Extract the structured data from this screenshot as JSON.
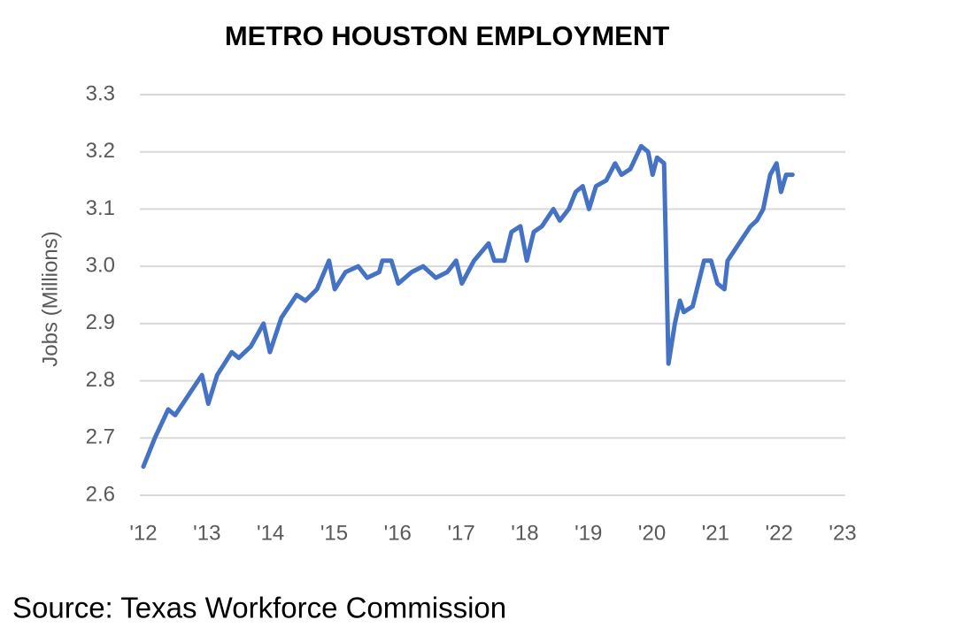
{
  "chart_data": {
    "type": "line",
    "title": "METRO HOUSTON EMPLOYMENT",
    "ylabel": "Jobs (Millions)",
    "source": "Source: Texas Workforce Commission",
    "x": [
      2012,
      2012.18,
      2012.39,
      2012.5,
      2012.74,
      2012.92,
      2013.02,
      2013.16,
      2013.39,
      2013.5,
      2013.69,
      2013.89,
      2013.99,
      2014.17,
      2014.41,
      2014.55,
      2014.73,
      2014.92,
      2015.01,
      2015.18,
      2015.38,
      2015.52,
      2015.71,
      2015.76,
      2015.9,
      2016.01,
      2016.22,
      2016.4,
      2016.6,
      2016.78,
      2016.92,
      2017.01,
      2017.2,
      2017.43,
      2017.52,
      2017.68,
      2017.79,
      2017.93,
      2018.03,
      2018.14,
      2018.27,
      2018.45,
      2018.55,
      2018.69,
      2018.8,
      2018.91,
      2019.01,
      2019.12,
      2019.28,
      2019.42,
      2019.52,
      2019.66,
      2019.83,
      2019.94,
      2020.01,
      2020.08,
      2020.19,
      2020.26,
      2020.36,
      2020.44,
      2020.5,
      2020.64,
      2020.82,
      2020.93,
      2021.03,
      2021.14,
      2021.19,
      2021.37,
      2021.55,
      2021.65,
      2021.75,
      2021.86,
      2021.96,
      2022.03,
      2022.11,
      2022.21
    ],
    "series": [
      {
        "name": "Employment",
        "color": "#4472c4",
        "values": [
          2.65,
          2.7,
          2.75,
          2.74,
          2.78,
          2.81,
          2.76,
          2.81,
          2.85,
          2.84,
          2.86,
          2.9,
          2.85,
          2.91,
          2.95,
          2.94,
          2.96,
          3.01,
          2.96,
          2.99,
          3.0,
          2.98,
          2.99,
          3.01,
          3.01,
          2.97,
          2.99,
          3.0,
          2.98,
          2.99,
          3.01,
          2.97,
          3.01,
          3.04,
          3.01,
          3.01,
          3.06,
          3.07,
          3.01,
          3.06,
          3.07,
          3.1,
          3.08,
          3.1,
          3.13,
          3.14,
          3.1,
          3.14,
          3.15,
          3.18,
          3.16,
          3.17,
          3.21,
          3.2,
          3.16,
          3.19,
          3.18,
          2.83,
          2.9,
          2.94,
          2.92,
          2.93,
          3.01,
          3.01,
          2.97,
          2.96,
          3.01,
          3.04,
          3.07,
          3.08,
          3.1,
          3.16,
          3.18,
          3.13,
          3.16,
          3.16
        ]
      }
    ],
    "xlim": [
      2012,
      2023
    ],
    "xticks": [
      {
        "value": 2012,
        "label": "'12"
      },
      {
        "value": 2013,
        "label": "'13"
      },
      {
        "value": 2014,
        "label": "'14"
      },
      {
        "value": 2015,
        "label": "'15"
      },
      {
        "value": 2016,
        "label": "'16"
      },
      {
        "value": 2017,
        "label": "'17"
      },
      {
        "value": 2018,
        "label": "'18"
      },
      {
        "value": 2019,
        "label": "'19"
      },
      {
        "value": 2020,
        "label": "'20"
      },
      {
        "value": 2021,
        "label": "'21"
      },
      {
        "value": 2022,
        "label": "'22"
      },
      {
        "value": 2023,
        "label": "'23"
      }
    ],
    "ylim": [
      2.6,
      3.3
    ],
    "yticks": [
      2.6,
      2.7,
      2.8,
      2.9,
      {
        "value": 3.0,
        "label": "3.0"
      },
      3.1,
      3.2,
      3.3
    ],
    "grid": true
  }
}
